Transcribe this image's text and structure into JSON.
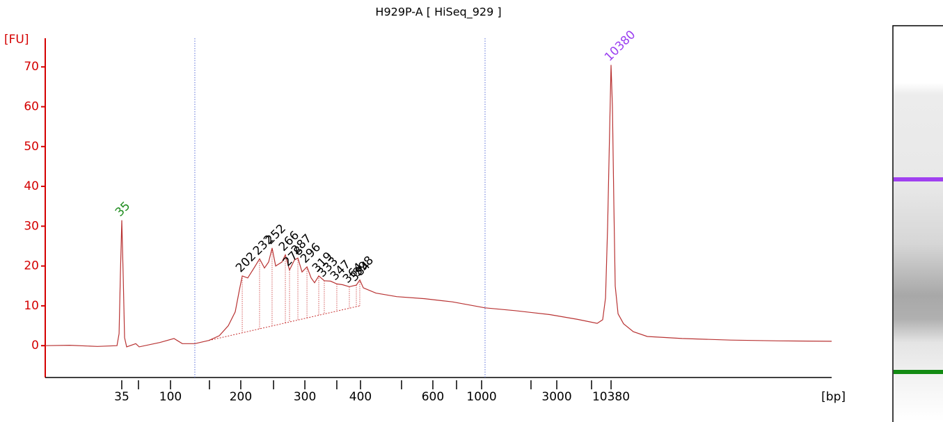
{
  "chart_data": {
    "type": "line",
    "title": "H929P-A  [ HiSeq_929  ]",
    "y_label": "[FU]",
    "x_label": "[bp]",
    "axis_color": "#d40000",
    "xlim": [
      40,
      115.33
    ],
    "ylim": [
      -8,
      77.2
    ],
    "yticks": [
      0,
      10,
      20,
      30,
      40,
      50,
      60,
      70
    ],
    "xticks": [
      {
        "value": 47.33,
        "label": "35"
      },
      {
        "value": 52.0,
        "label": "100"
      },
      {
        "value": 58.73,
        "label": "200"
      },
      {
        "value": 64.87,
        "label": "300"
      },
      {
        "value": 70.2,
        "label": "400"
      },
      {
        "value": 77.13,
        "label": "600"
      },
      {
        "value": 81.8,
        "label": "1000"
      },
      {
        "value": 89.0,
        "label": "3000"
      },
      {
        "value": 94.2,
        "label": "10380"
      }
    ],
    "xminor_ticks": [
      48.93,
      55.73,
      61.87,
      67.93,
      74.13,
      79.4,
      86.53,
      92.33
    ],
    "region_markers": {
      "color": "#5a6fd8",
      "x": [
        54.33,
        82.13
      ]
    },
    "baseline": {
      "color": "#c83030",
      "x": [
        55.67,
        70.13
      ],
      "y": [
        1.3,
        10.0
      ]
    },
    "series": [
      {
        "color": "#b83232",
        "x": [
          40.0,
          42.33,
          45.0,
          46.87,
          47.07,
          47.2,
          47.33,
          47.47,
          47.6,
          47.8,
          48.67,
          49.0,
          51.0,
          52.33,
          53.13,
          54.33,
          55.67,
          56.67,
          57.53,
          58.2,
          58.6,
          58.87,
          59.4,
          60.0,
          60.53,
          61.0,
          61.4,
          61.73,
          62.07,
          62.67,
          63.0,
          63.4,
          63.87,
          64.2,
          64.6,
          65.07,
          65.47,
          65.8,
          66.2,
          66.73,
          67.33,
          67.93,
          68.47,
          69.13,
          69.8,
          70.13,
          70.47,
          71.67,
          73.67,
          76.33,
          79.0,
          82.13,
          85.0,
          88.33,
          91.0,
          92.87,
          93.4,
          93.67,
          93.87,
          94.07,
          94.2,
          94.33,
          94.47,
          94.6,
          94.87,
          95.4,
          96.33,
          97.67,
          101.0,
          105.67,
          110.33,
          115.33
        ],
        "values": [
          0,
          0.1,
          -0.2,
          0,
          3,
          18,
          31.5,
          17,
          2,
          -0.3,
          0.5,
          -0.3,
          0.8,
          1.8,
          0.5,
          0.5,
          1.3,
          2.5,
          5,
          8.5,
          14,
          17.5,
          17,
          19.5,
          21.8,
          19.5,
          21,
          24.5,
          20,
          21,
          22.8,
          19,
          21.5,
          22,
          18.5,
          19.8,
          17,
          15.8,
          17.5,
          16.3,
          16.2,
          15.5,
          15.3,
          14.8,
          15.2,
          16.5,
          14.5,
          13.2,
          12.3,
          11.8,
          11,
          9.5,
          8.8,
          7.8,
          6.6,
          5.6,
          6.5,
          12,
          30,
          55,
          70.5,
          60,
          35,
          15,
          8,
          5.5,
          3.5,
          2.3,
          1.8,
          1.4,
          1.2,
          1.1
        ]
      }
    ],
    "peaks": [
      {
        "size": 35,
        "x": 47.33,
        "y": 31.5,
        "color": "#1e8c1e"
      },
      {
        "size": 202,
        "x": 58.87,
        "y": 17.5,
        "color": "#000000"
      },
      {
        "size": 232,
        "x": 60.53,
        "y": 21.8,
        "color": "#000000"
      },
      {
        "size": 252,
        "x": 61.73,
        "y": 24.5,
        "color": "#000000"
      },
      {
        "size": 266,
        "x": 63.0,
        "y": 22.8,
        "color": "#000000"
      },
      {
        "size": 278,
        "x": 63.4,
        "y": 19,
        "color": "#000000"
      },
      {
        "size": 287,
        "x": 64.2,
        "y": 22,
        "color": "#000000"
      },
      {
        "size": 296,
        "x": 65.07,
        "y": 19.8,
        "color": "#000000"
      },
      {
        "size": 319,
        "x": 66.2,
        "y": 17.5,
        "color": "#000000"
      },
      {
        "size": 333,
        "x": 66.73,
        "y": 16.3,
        "color": "#000000"
      },
      {
        "size": 347,
        "x": 67.93,
        "y": 15.5,
        "color": "#000000"
      },
      {
        "size": 364,
        "x": 69.13,
        "y": 14.8,
        "color": "#000000"
      },
      {
        "size": 384,
        "x": 69.8,
        "y": 15.2,
        "color": "#000000"
      },
      {
        "size": 398,
        "x": 70.13,
        "y": 16.5,
        "color": "#000000"
      },
      {
        "size": 10380,
        "x": 94.2,
        "y": 70.5,
        "color": "#9b3ff0"
      }
    ]
  }
}
